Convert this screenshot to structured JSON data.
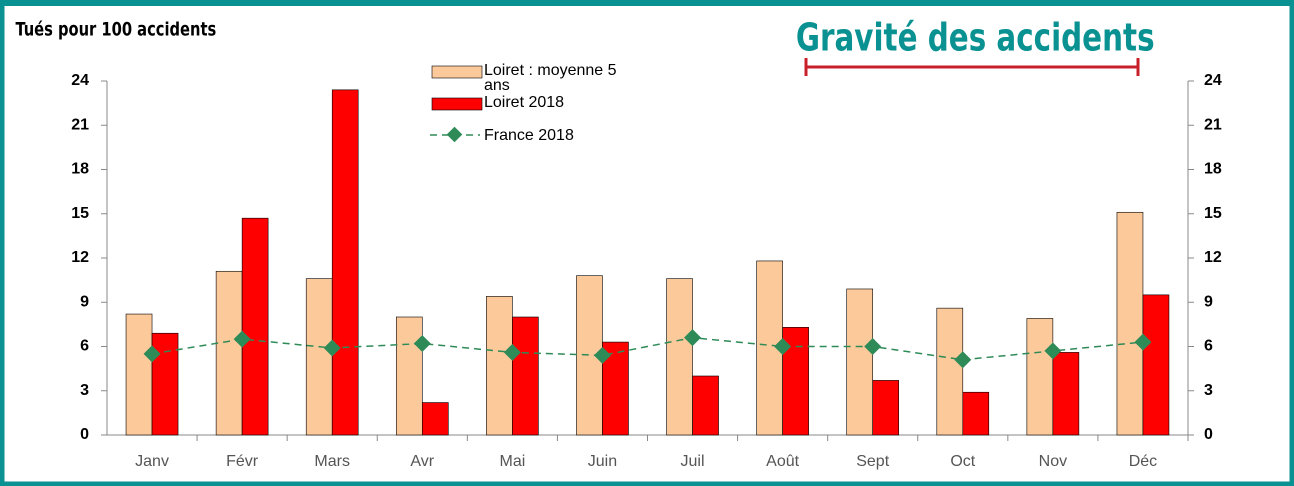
{
  "chart_data": {
    "type": "bar",
    "title": "Gravité des accidents",
    "ylabel": "Tués pour 100 accidents",
    "categories": [
      "Janv",
      "Févr",
      "Mars",
      "Avr",
      "Mai",
      "Juin",
      "Juil",
      "Août",
      "Sept",
      "Oct",
      "Nov",
      "Déc"
    ],
    "series": [
      {
        "name": "Loiret : moyenne 5 ans",
        "type": "bar",
        "color": "#fcc99b",
        "values": [
          8.2,
          11.1,
          10.6,
          8.0,
          9.4,
          10.8,
          10.6,
          11.8,
          9.9,
          8.6,
          7.9,
          15.1
        ]
      },
      {
        "name": "Loiret 2018",
        "type": "bar",
        "color": "#ff0000",
        "values": [
          6.9,
          14.7,
          23.4,
          2.2,
          8.0,
          6.3,
          4.0,
          7.3,
          3.7,
          2.9,
          5.6,
          9.5
        ]
      },
      {
        "name": "France 2018",
        "type": "line",
        "color": "#2e8b57",
        "values": [
          5.5,
          6.5,
          5.9,
          6.2,
          5.6,
          5.4,
          6.6,
          6.0,
          6.0,
          5.1,
          5.7,
          6.3
        ]
      }
    ],
    "ylim": [
      0,
      24
    ],
    "yticks": [
      0,
      3,
      6,
      9,
      12,
      15,
      18,
      21,
      24
    ],
    "y2lim": [
      0,
      24
    ],
    "y2ticks": [
      0,
      3,
      6,
      9,
      12,
      15,
      18,
      21,
      24
    ]
  }
}
